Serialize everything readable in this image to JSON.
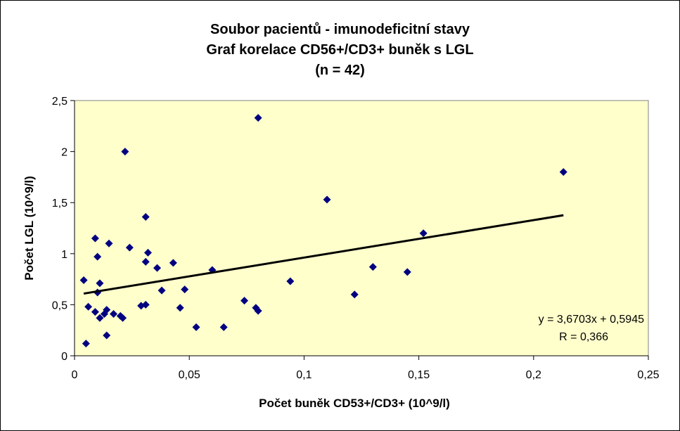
{
  "chart_data": {
    "type": "scatter",
    "title": [
      "Soubor pacientů - imunodeficitní stavy",
      "Graf korelace CD56+/CD3+ buněk s LGL",
      "(n = 42)"
    ],
    "xlabel": "Počet buněk CD53+/CD3+ (10^9/l)",
    "ylabel": "Počet LGL (10^9/l)",
    "xlim": [
      0,
      0.25
    ],
    "ylim": [
      0,
      2.5
    ],
    "x_ticks": [
      0,
      0.05,
      0.1,
      0.15,
      0.2,
      0.25
    ],
    "x_tick_labels": [
      "0",
      "0,05",
      "0,1",
      "0,15",
      "0,2",
      "0,25"
    ],
    "y_ticks": [
      0,
      0.5,
      1,
      1.5,
      2,
      2.5
    ],
    "y_tick_labels": [
      "0",
      "0,5",
      "1",
      "1,5",
      "2",
      "2,5"
    ],
    "grid": false,
    "plot_background": "#ffffcc",
    "marker_color": "#000080",
    "trendline": {
      "slope": 3.6703,
      "intercept": 0.5945,
      "x_range": [
        0.004,
        0.213
      ],
      "equation_label": "y = 3,6703x + 0,5945",
      "r_label": "R = 0,366"
    },
    "points": [
      [
        0.004,
        0.74
      ],
      [
        0.005,
        0.12
      ],
      [
        0.006,
        0.48
      ],
      [
        0.009,
        0.43
      ],
      [
        0.009,
        1.15
      ],
      [
        0.01,
        0.97
      ],
      [
        0.01,
        0.62
      ],
      [
        0.011,
        0.71
      ],
      [
        0.011,
        0.37
      ],
      [
        0.013,
        0.41
      ],
      [
        0.014,
        0.45
      ],
      [
        0.014,
        0.2
      ],
      [
        0.015,
        1.1
      ],
      [
        0.017,
        0.41
      ],
      [
        0.02,
        0.39
      ],
      [
        0.021,
        0.37
      ],
      [
        0.022,
        2.0
      ],
      [
        0.024,
        1.06
      ],
      [
        0.029,
        0.49
      ],
      [
        0.031,
        0.5
      ],
      [
        0.031,
        0.92
      ],
      [
        0.031,
        1.36
      ],
      [
        0.032,
        1.01
      ],
      [
        0.036,
        0.86
      ],
      [
        0.038,
        0.64
      ],
      [
        0.043,
        0.91
      ],
      [
        0.046,
        0.47
      ],
      [
        0.048,
        0.65
      ],
      [
        0.053,
        0.28
      ],
      [
        0.06,
        0.84
      ],
      [
        0.065,
        0.28
      ],
      [
        0.074,
        0.54
      ],
      [
        0.079,
        0.47
      ],
      [
        0.08,
        0.44
      ],
      [
        0.08,
        2.33
      ],
      [
        0.094,
        0.73
      ],
      [
        0.11,
        1.53
      ],
      [
        0.122,
        0.6
      ],
      [
        0.13,
        0.87
      ],
      [
        0.145,
        0.82
      ],
      [
        0.152,
        1.2
      ],
      [
        0.213,
        1.8
      ]
    ]
  }
}
